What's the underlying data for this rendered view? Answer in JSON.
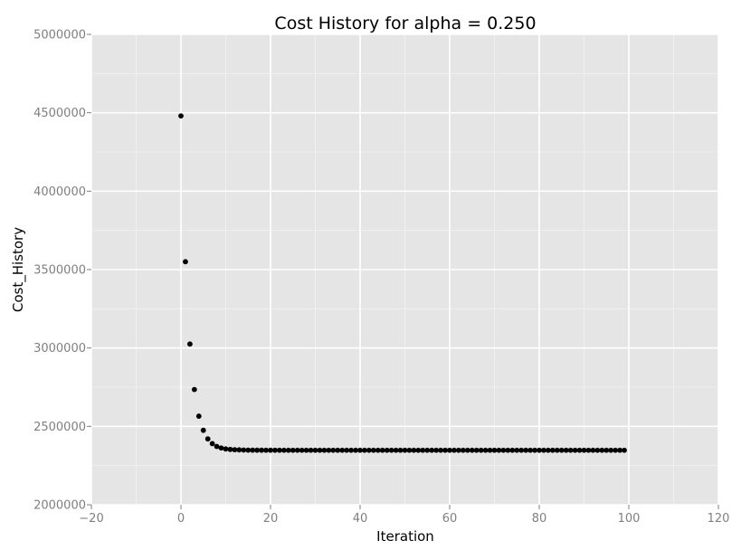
{
  "chart_data": {
    "type": "scatter",
    "title": "Cost History for alpha = 0.250",
    "xlabel": "Iteration",
    "ylabel": "Cost_History",
    "xlim": [
      -20,
      120
    ],
    "ylim": [
      2000000,
      5000000
    ],
    "x_ticks": [
      -20,
      0,
      20,
      40,
      60,
      80,
      100,
      120
    ],
    "x_tick_labels": [
      "−20",
      "0",
      "20",
      "40",
      "60",
      "80",
      "100",
      "120"
    ],
    "y_ticks": [
      2000000,
      2500000,
      3000000,
      3500000,
      4000000,
      4500000,
      5000000
    ],
    "y_tick_labels": [
      "2000000",
      "2500000",
      "3000000",
      "3500000",
      "4000000",
      "4500000",
      "5000000"
    ],
    "grid": true,
    "style": {
      "panel_background": "#e5e5e5",
      "major_grid": "#ffffff",
      "minor_grid": "#f0f0f0",
      "point_color": "#000000",
      "tick_color": "#7f7f7f"
    },
    "series": [
      {
        "x": [
          0,
          1,
          2,
          3,
          4,
          5,
          6,
          7,
          8,
          9,
          10,
          11,
          12,
          13,
          14,
          15,
          16,
          17,
          18,
          19,
          20,
          21,
          22,
          23,
          24,
          25,
          26,
          27,
          28,
          29,
          30,
          31,
          32,
          33,
          34,
          35,
          36,
          37,
          38,
          39,
          40,
          41,
          42,
          43,
          44,
          45,
          46,
          47,
          48,
          49,
          50,
          51,
          52,
          53,
          54,
          55,
          56,
          57,
          58,
          59,
          60,
          61,
          62,
          63,
          64,
          65,
          66,
          67,
          68,
          69,
          70,
          71,
          72,
          73,
          74,
          75,
          76,
          77,
          78,
          79,
          80,
          81,
          82,
          83,
          84,
          85,
          86,
          87,
          88,
          89,
          90,
          91,
          92,
          93,
          94,
          95,
          96,
          97,
          98,
          99
        ],
        "y": [
          4480000,
          3550000,
          3025000,
          2735000,
          2565000,
          2475000,
          2420000,
          2390000,
          2372000,
          2362000,
          2356000,
          2353000,
          2351000,
          2350000,
          2349000,
          2348500,
          2348200,
          2348000,
          2347900,
          2347800,
          2347750,
          2347700,
          2347700,
          2347650,
          2347650,
          2347650,
          2347650,
          2347650,
          2347650,
          2347650,
          2347650,
          2347650,
          2347650,
          2347650,
          2347650,
          2347650,
          2347650,
          2347650,
          2347650,
          2347650,
          2347650,
          2347650,
          2347650,
          2347650,
          2347650,
          2347650,
          2347650,
          2347650,
          2347650,
          2347650,
          2347650,
          2347650,
          2347650,
          2347650,
          2347650,
          2347650,
          2347650,
          2347650,
          2347650,
          2347650,
          2347650,
          2347650,
          2347650,
          2347650,
          2347650,
          2347650,
          2347650,
          2347650,
          2347650,
          2347650,
          2347650,
          2347650,
          2347650,
          2347650,
          2347650,
          2347650,
          2347650,
          2347650,
          2347650,
          2347650,
          2347650,
          2347650,
          2347650,
          2347650,
          2347650,
          2347650,
          2347650,
          2347650,
          2347650,
          2347650,
          2347650,
          2347650,
          2347650,
          2347650,
          2347650,
          2347650,
          2347650,
          2347650,
          2347650,
          2347650
        ]
      }
    ]
  }
}
